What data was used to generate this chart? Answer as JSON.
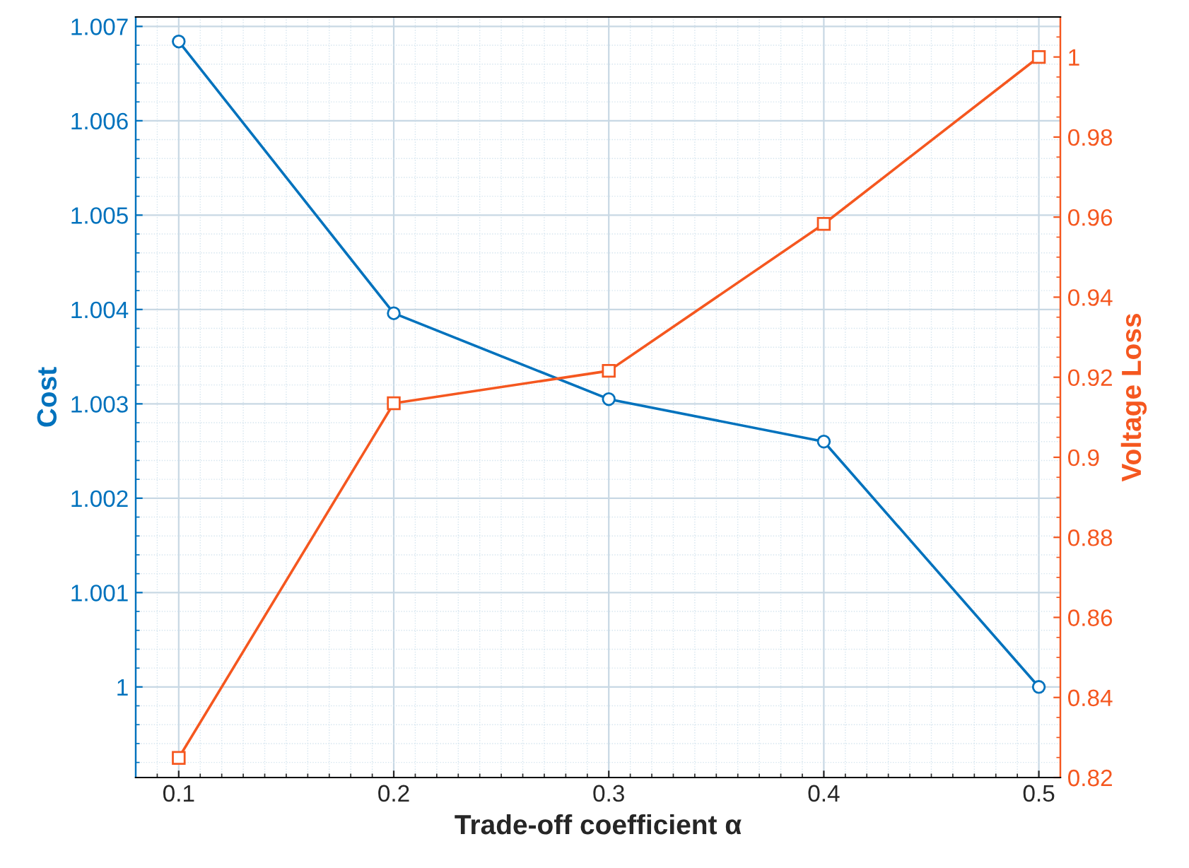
{
  "chart_data": {
    "type": "line",
    "xlabel": "Trade-off coefficient α",
    "ylabel": "Cost",
    "y2label": "Voltage Loss",
    "x": [
      0.1,
      0.2,
      0.3,
      0.4,
      0.5
    ],
    "series": [
      {
        "color": "#0072bd",
        "marker": "circle",
        "values": [
          1.00684,
          1.00396,
          1.00305,
          1.0026,
          1.0
        ]
      },
      {
        "color": "#f5571f",
        "marker": "square",
        "axis": "y2",
        "values": [
          0.8249,
          0.9135,
          0.9216,
          0.9583,
          1.0
        ]
      }
    ],
    "xlim": [
      0.08,
      0.51
    ],
    "xticks": [
      0.1,
      0.2,
      0.3,
      0.4,
      0.5
    ],
    "ylim": [
      0.99904,
      1.0071
    ],
    "yticks": [
      1,
      1.001,
      1.002,
      1.003,
      1.004,
      1.005,
      1.006,
      1.007
    ],
    "y2lim": [
      0.82,
      1.01
    ],
    "y2ticks": [
      0.82,
      0.84,
      0.86,
      0.88,
      0.9,
      0.92,
      0.94,
      0.96,
      0.98,
      1
    ],
    "grid": true,
    "legend": false,
    "line_style": "solid"
  }
}
